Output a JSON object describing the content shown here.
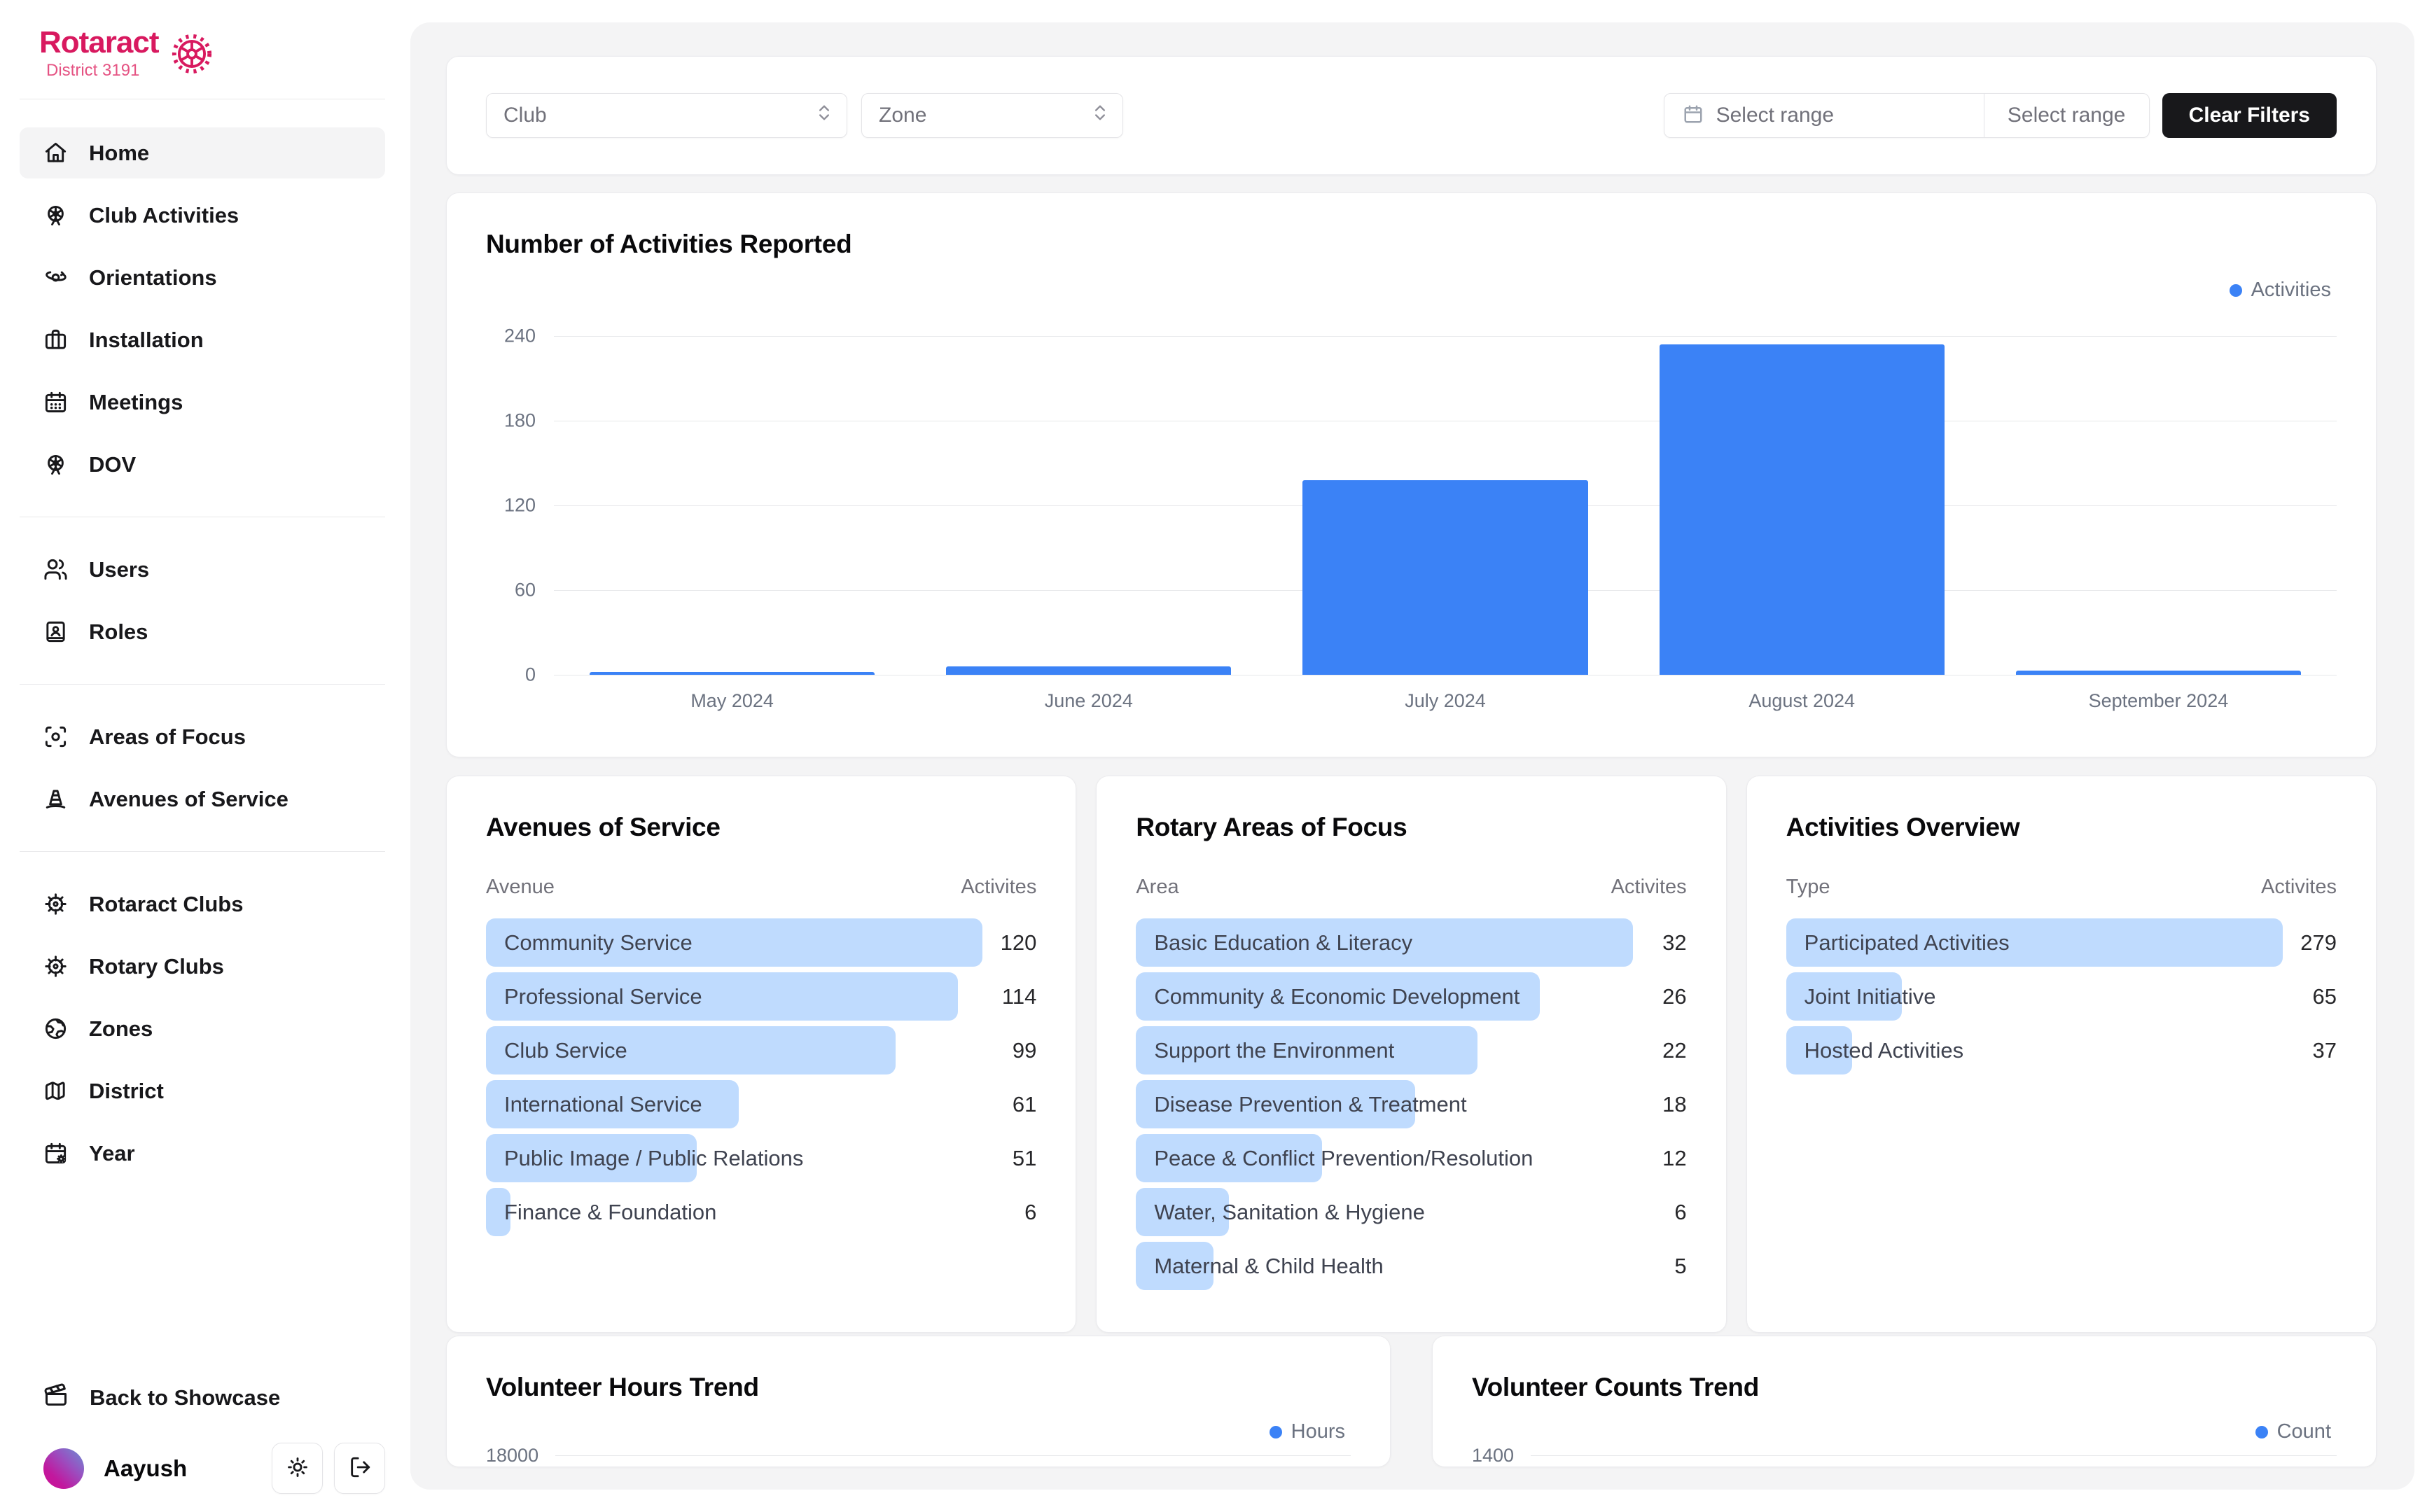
{
  "brand": {
    "name": "Rotaract",
    "subtitle": "District 3191"
  },
  "sidebar": {
    "sections": [
      {
        "items": [
          {
            "label": "Home",
            "icon": "home",
            "active": true
          },
          {
            "label": "Club Activities",
            "icon": "ferris-wheel",
            "active": false
          },
          {
            "label": "Orientations",
            "icon": "orbit",
            "active": false
          },
          {
            "label": "Installation",
            "icon": "briefcase",
            "active": false
          },
          {
            "label": "Meetings",
            "icon": "calendar",
            "active": false
          },
          {
            "label": "DOV",
            "icon": "ferris-wheel",
            "active": false
          }
        ]
      },
      {
        "items": [
          {
            "label": "Users",
            "icon": "users",
            "active": false
          },
          {
            "label": "Roles",
            "icon": "book-user",
            "active": false
          }
        ]
      },
      {
        "items": [
          {
            "label": "Areas of Focus",
            "icon": "focus",
            "active": false
          },
          {
            "label": "Avenues of Service",
            "icon": "traffic-cone",
            "active": false
          }
        ]
      },
      {
        "items": [
          {
            "label": "Rotaract Clubs",
            "icon": "ship-wheel",
            "active": false
          },
          {
            "label": "Rotary Clubs",
            "icon": "ship-wheel",
            "active": false
          },
          {
            "label": "Zones",
            "icon": "earth",
            "active": false
          },
          {
            "label": "District",
            "icon": "map",
            "active": false
          },
          {
            "label": "Year",
            "icon": "calendar-cog",
            "active": false
          }
        ]
      }
    ],
    "footer": {
      "back_label": "Back to Showcase",
      "user_name": "Aayush"
    }
  },
  "filters": {
    "club_label": "Club",
    "zone_label": "Zone",
    "range_start_placeholder": "Select range",
    "range_end_placeholder": "Select range",
    "clear_label": "Clear Filters"
  },
  "colors": {
    "accent_blue": "#3b82f6",
    "light_blue_bar": "#bfdbfe",
    "brand_pink": "#d8195f",
    "dark_button": "#18181b"
  },
  "chart_data": [
    {
      "type": "bar",
      "title": "Number of Activities Reported",
      "legend": [
        "Activities"
      ],
      "legend_position": "top-right",
      "categories": [
        "May 2024",
        "June 2024",
        "July 2024",
        "August 2024",
        "September 2024"
      ],
      "values": [
        2,
        6,
        138,
        234,
        3
      ],
      "ylim": [
        0,
        240
      ],
      "yticks": [
        0,
        60,
        120,
        180,
        240
      ],
      "grid": true,
      "bar_color": "#3b82f6"
    },
    {
      "type": "table",
      "title": "Avenues of Service",
      "columns": [
        "Avenue",
        "Activites"
      ],
      "rows": [
        {
          "label": "Community Service",
          "value": 120
        },
        {
          "label": "Professional Service",
          "value": 114
        },
        {
          "label": "Club Service",
          "value": 99
        },
        {
          "label": "International Service",
          "value": 61
        },
        {
          "label": "Public Image / Public Relations",
          "value": 51
        },
        {
          "label": "Finance & Foundation",
          "value": 6
        }
      ],
      "bar_color": "#bfdbfe"
    },
    {
      "type": "table",
      "title": "Rotary Areas of Focus",
      "columns": [
        "Area",
        "Activites"
      ],
      "rows": [
        {
          "label": "Basic Education & Literacy",
          "value": 32
        },
        {
          "label": "Community & Economic Development",
          "value": 26
        },
        {
          "label": "Support the Environment",
          "value": 22
        },
        {
          "label": "Disease Prevention & Treatment",
          "value": 18
        },
        {
          "label": "Peace & Conflict Prevention/Resolution",
          "value": 12
        },
        {
          "label": "Water, Sanitation & Hygiene",
          "value": 6
        },
        {
          "label": "Maternal & Child Health",
          "value": 5
        }
      ],
      "bar_color": "#bfdbfe"
    },
    {
      "type": "table",
      "title": "Activities Overview",
      "columns": [
        "Type",
        "Activites"
      ],
      "rows": [
        {
          "label": "Participated Activities",
          "value": 279
        },
        {
          "label": "Joint Initiative",
          "value": 65
        },
        {
          "label": "Hosted Activities",
          "value": 37
        }
      ],
      "bar_color": "#bfdbfe"
    },
    {
      "type": "line",
      "title": "Volunteer Hours Trend",
      "legend": [
        "Hours"
      ],
      "legend_position": "top-right",
      "first_visible_ytick": "18000",
      "dot_color": "#3b82f6"
    },
    {
      "type": "line",
      "title": "Volunteer Counts Trend",
      "legend": [
        "Count"
      ],
      "legend_position": "top-right",
      "first_visible_ytick": "1400",
      "dot_color": "#3b82f6"
    }
  ]
}
